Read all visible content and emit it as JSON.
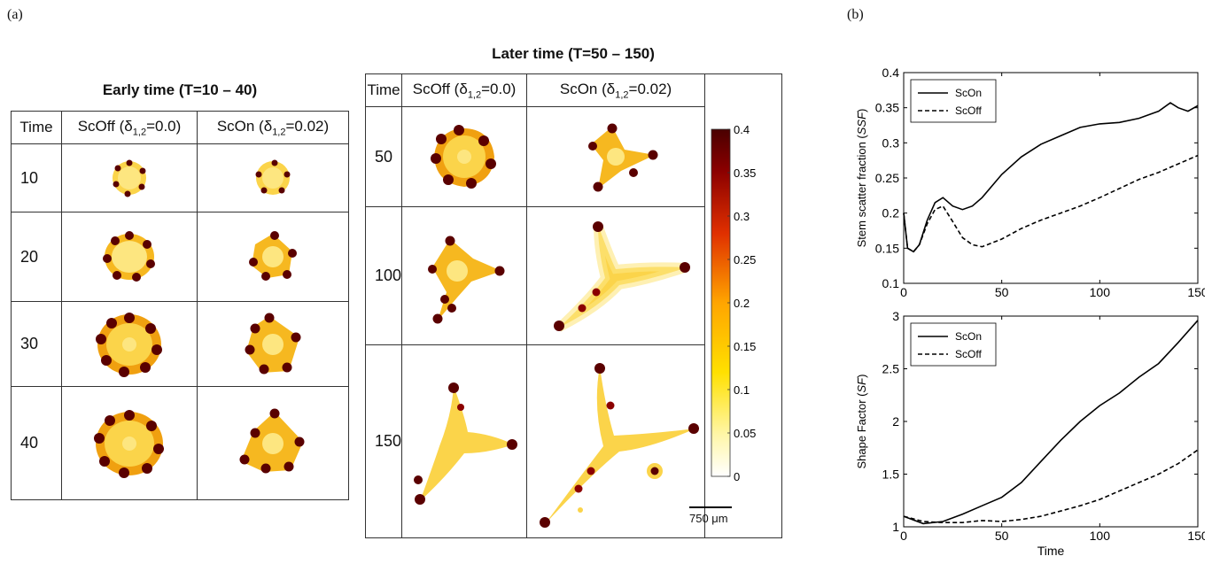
{
  "panel_a_label": "(a)",
  "panel_b_label": "(b)",
  "early": {
    "title": "Early time (T=10 – 40)",
    "headers": {
      "time": "Time",
      "scoff_prefix": "ScOff (δ",
      "scoff_sub": "1,2",
      "scoff_suffix": "=0.0)",
      "scon_prefix": "ScOn (δ",
      "scon_sub": "1,2",
      "scon_suffix": "=0.02)"
    },
    "rows": [
      "10",
      "20",
      "30",
      "40"
    ]
  },
  "later": {
    "title": "Later time (T=50 – 150)",
    "headers": {
      "time": "Time",
      "scoff_prefix": "ScOff (δ",
      "scoff_sub": "1,2",
      "scoff_suffix": "=0.0)",
      "scon_prefix": "ScOn (δ",
      "scon_sub": "1,2",
      "scon_suffix": "=0.02)"
    },
    "rows": [
      "50",
      "100",
      "150"
    ],
    "scale_bar": "750 μm"
  },
  "colorbar": {
    "ticks": [
      "0.4",
      "0.35",
      "0.3",
      "0.25",
      "0.2",
      "0.15",
      "0.1",
      "0.05",
      "0"
    ],
    "colors": [
      "#ffffff",
      "#fff6a8",
      "#ffe000",
      "#ffa500",
      "#e03000",
      "#8b0000",
      "#4a0000"
    ]
  },
  "chart_data": [
    {
      "type": "line",
      "ylabel": "Stem scatter fraction (SSF)",
      "xlabel": "",
      "xlim": [
        0,
        150
      ],
      "ylim": [
        0.1,
        0.4
      ],
      "xticks": [
        "0",
        "50",
        "100",
        "150"
      ],
      "yticks": [
        "0.1",
        "0.15",
        "0.2",
        "0.25",
        "0.3",
        "0.35",
        "0.4"
      ],
      "legend": "top-left",
      "series": [
        {
          "name": "ScOn",
          "style": "solid",
          "x": [
            0,
            2,
            5,
            8,
            12,
            16,
            20,
            25,
            30,
            35,
            40,
            50,
            60,
            70,
            80,
            90,
            100,
            110,
            120,
            130,
            136,
            140,
            145,
            150
          ],
          "y": [
            0.2,
            0.15,
            0.145,
            0.155,
            0.19,
            0.215,
            0.222,
            0.21,
            0.205,
            0.21,
            0.222,
            0.255,
            0.28,
            0.298,
            0.31,
            0.322,
            0.327,
            0.329,
            0.335,
            0.345,
            0.357,
            0.35,
            0.345,
            0.353
          ]
        },
        {
          "name": "ScOff",
          "style": "dashed",
          "x": [
            0,
            2,
            5,
            8,
            12,
            16,
            20,
            25,
            30,
            35,
            40,
            50,
            60,
            70,
            80,
            90,
            100,
            110,
            120,
            130,
            140,
            150
          ],
          "y": [
            0.2,
            0.15,
            0.145,
            0.155,
            0.185,
            0.205,
            0.21,
            0.188,
            0.165,
            0.155,
            0.152,
            0.163,
            0.178,
            0.19,
            0.2,
            0.21,
            0.222,
            0.235,
            0.248,
            0.258,
            0.27,
            0.282
          ]
        }
      ]
    },
    {
      "type": "line",
      "ylabel": "Shape Factor (SF)",
      "xlabel": "Time",
      "xlim": [
        0,
        150
      ],
      "ylim": [
        1,
        3
      ],
      "xticks": [
        "0",
        "50",
        "100",
        "150"
      ],
      "yticks": [
        "1",
        "1.5",
        "2",
        "2.5",
        "3"
      ],
      "legend": "top-left",
      "series": [
        {
          "name": "ScOn",
          "style": "solid",
          "x": [
            0,
            10,
            20,
            30,
            40,
            50,
            60,
            70,
            80,
            90,
            100,
            110,
            120,
            130,
            140,
            150
          ],
          "y": [
            1.1,
            1.03,
            1.05,
            1.12,
            1.2,
            1.28,
            1.42,
            1.62,
            1.82,
            2.0,
            2.15,
            2.27,
            2.42,
            2.55,
            2.75,
            2.96
          ]
        },
        {
          "name": "ScOff",
          "style": "dashed",
          "x": [
            0,
            10,
            20,
            30,
            40,
            50,
            60,
            70,
            80,
            90,
            100,
            110,
            120,
            130,
            140,
            150
          ],
          "y": [
            1.1,
            1.05,
            1.04,
            1.04,
            1.06,
            1.05,
            1.07,
            1.1,
            1.15,
            1.2,
            1.26,
            1.34,
            1.42,
            1.5,
            1.6,
            1.73
          ]
        }
      ]
    }
  ]
}
